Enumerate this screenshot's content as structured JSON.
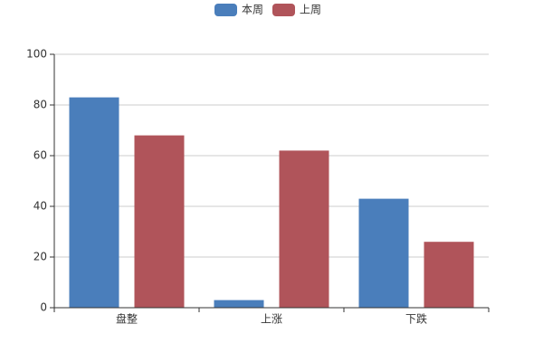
{
  "chart_data": {
    "type": "bar",
    "categories": [
      "盘整",
      "上涨",
      "下跌"
    ],
    "series": [
      {
        "name": "本周",
        "color": "#4a7ebb",
        "values": [
          83,
          3,
          43
        ]
      },
      {
        "name": "上周",
        "color": "#b0545a",
        "values": [
          68,
          62,
          26
        ]
      }
    ],
    "ylim": [
      0,
      100
    ],
    "yticks": [
      0,
      20,
      40,
      60,
      80,
      100
    ],
    "grid": true,
    "legend": "top"
  }
}
